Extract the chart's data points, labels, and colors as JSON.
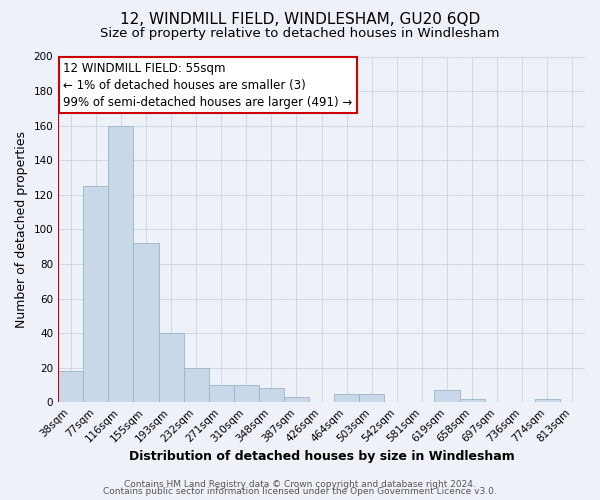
{
  "title": "12, WINDMILL FIELD, WINDLESHAM, GU20 6QD",
  "subtitle": "Size of property relative to detached houses in Windlesham",
  "xlabel": "Distribution of detached houses by size in Windlesham",
  "ylabel": "Number of detached properties",
  "bar_labels": [
    "38sqm",
    "77sqm",
    "116sqm",
    "155sqm",
    "193sqm",
    "232sqm",
    "271sqm",
    "310sqm",
    "348sqm",
    "387sqm",
    "426sqm",
    "464sqm",
    "503sqm",
    "542sqm",
    "581sqm",
    "619sqm",
    "658sqm",
    "697sqm",
    "736sqm",
    "774sqm",
    "813sqm"
  ],
  "bar_values": [
    18,
    125,
    160,
    92,
    40,
    20,
    10,
    10,
    8,
    3,
    0,
    5,
    5,
    0,
    0,
    7,
    2,
    0,
    0,
    2,
    0
  ],
  "bar_color": "#c8d8e8",
  "bar_edge_color": "#9cb4c8",
  "annotation_line1": "12 WINDMILL FIELD: 55sqm",
  "annotation_line2": "← 1% of detached houses are smaller (3)",
  "annotation_line3": "99% of semi-detached houses are larger (491) →",
  "annotation_box_color": "#ffffff",
  "annotation_box_edge_color": "#cc0000",
  "marker_line_color": "#cc0000",
  "ylim": [
    0,
    200
  ],
  "yticks": [
    0,
    20,
    40,
    60,
    80,
    100,
    120,
    140,
    160,
    180,
    200
  ],
  "grid_color": "#d0d8e8",
  "background_color": "#eef2f8",
  "footer_line1": "Contains HM Land Registry data © Crown copyright and database right 2024.",
  "footer_line2": "Contains public sector information licensed under the Open Government Licence v3.0.",
  "title_fontsize": 11,
  "subtitle_fontsize": 9.5,
  "xlabel_fontsize": 9,
  "ylabel_fontsize": 9,
  "tick_fontsize": 7.5,
  "footer_fontsize": 6.5,
  "annotation_fontsize": 8.5
}
